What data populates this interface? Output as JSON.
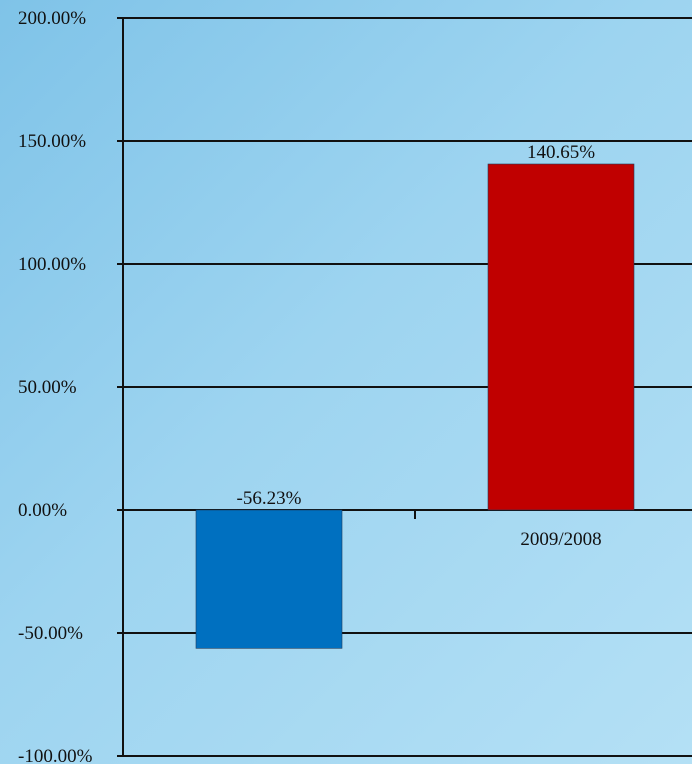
{
  "chart_data": {
    "type": "bar",
    "title": "",
    "xlabel": "",
    "ylabel": "",
    "categories": [
      "",
      "2009/2008"
    ],
    "values": [
      -56.23,
      140.65
    ],
    "data_labels": [
      "-56.23%",
      "140.65%"
    ],
    "bar_colors": [
      "#0070c0",
      "#c00000"
    ],
    "ylim": [
      -100,
      200
    ],
    "y_ticks": [
      200,
      150,
      100,
      50,
      0,
      -50,
      -100
    ],
    "y_tick_labels": [
      "200.00%",
      "150.00%",
      "100.00%",
      "50.00%",
      "0.00%",
      "-50.00%",
      "-100.00%"
    ],
    "grid": true,
    "legend": "none"
  }
}
